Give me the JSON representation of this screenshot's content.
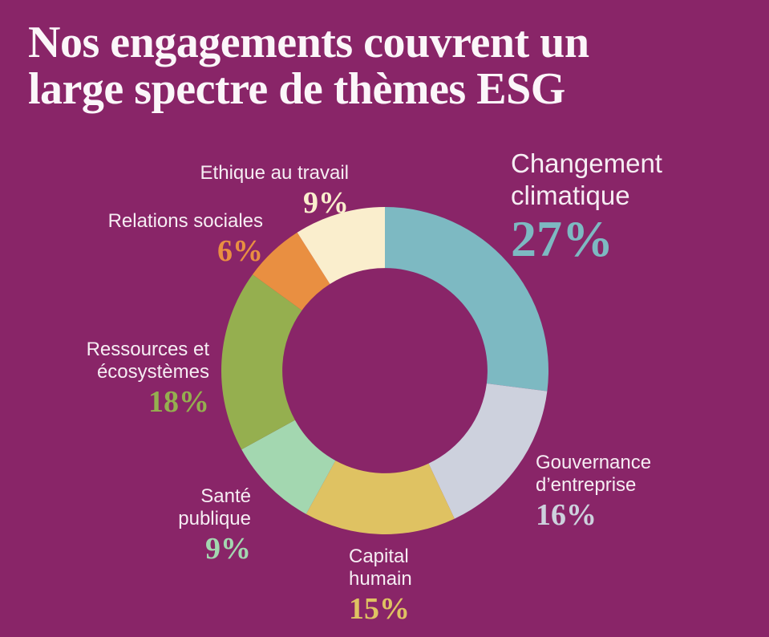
{
  "title": {
    "line1": "Nos engagements couvrent un",
    "line2": "large spectre de thèmes ESG"
  },
  "colors": {
    "background": "#892568",
    "title_text": "#fbf6f9",
    "label_text": "#f6edf3"
  },
  "chart_data": {
    "type": "pie",
    "subtype": "donut",
    "title": "Nos engagements couvrent un large spectre de thèmes ESG",
    "unit": "%",
    "start_angle_deg": 0,
    "direction": "clockwise",
    "inner_radius_ratio": 0.627,
    "legend_position": "around-chart",
    "segments": [
      {
        "id": "changement-climatique",
        "label": "Changement climatique",
        "value": 27,
        "color": "#7db9c2"
      },
      {
        "id": "gouvernance-entreprise",
        "label": "Gouvernance d’entreprise",
        "value": 16,
        "color": "#cdd1dd"
      },
      {
        "id": "capital-humain",
        "label": "Capital humain",
        "value": 15,
        "color": "#dfc262"
      },
      {
        "id": "sante-publique",
        "label": "Santé publique",
        "value": 9,
        "color": "#a3d7b0"
      },
      {
        "id": "ressources-ecosystemes",
        "label": "Ressources et écosystèmes",
        "value": 18,
        "color": "#95af4f"
      },
      {
        "id": "relations-sociales",
        "label": "Relations sociales",
        "value": 6,
        "color": "#e98f41"
      },
      {
        "id": "ethique-au-travail",
        "label": "Ethique au travail",
        "value": 9,
        "color": "#faeecd"
      }
    ]
  },
  "callouts": [
    {
      "seg": 6,
      "line1": "Ethique au travail",
      "line2": "",
      "pct": "9%"
    },
    {
      "seg": 5,
      "line1": "Relations sociales",
      "line2": "",
      "pct": "6%"
    },
    {
      "seg": 4,
      "line1": "Ressources et",
      "line2": "écosystèmes",
      "pct": "18%"
    },
    {
      "seg": 3,
      "line1": "Santé",
      "line2": "publique",
      "pct": "9%"
    },
    {
      "seg": 2,
      "line1": "Capital",
      "line2": "humain",
      "pct": "15%"
    },
    {
      "seg": 1,
      "line1": "Gouvernance",
      "line2": "d’entreprise",
      "pct": "16%"
    },
    {
      "seg": 0,
      "line1": "Changement",
      "line2": "climatique",
      "pct": "27%"
    }
  ]
}
